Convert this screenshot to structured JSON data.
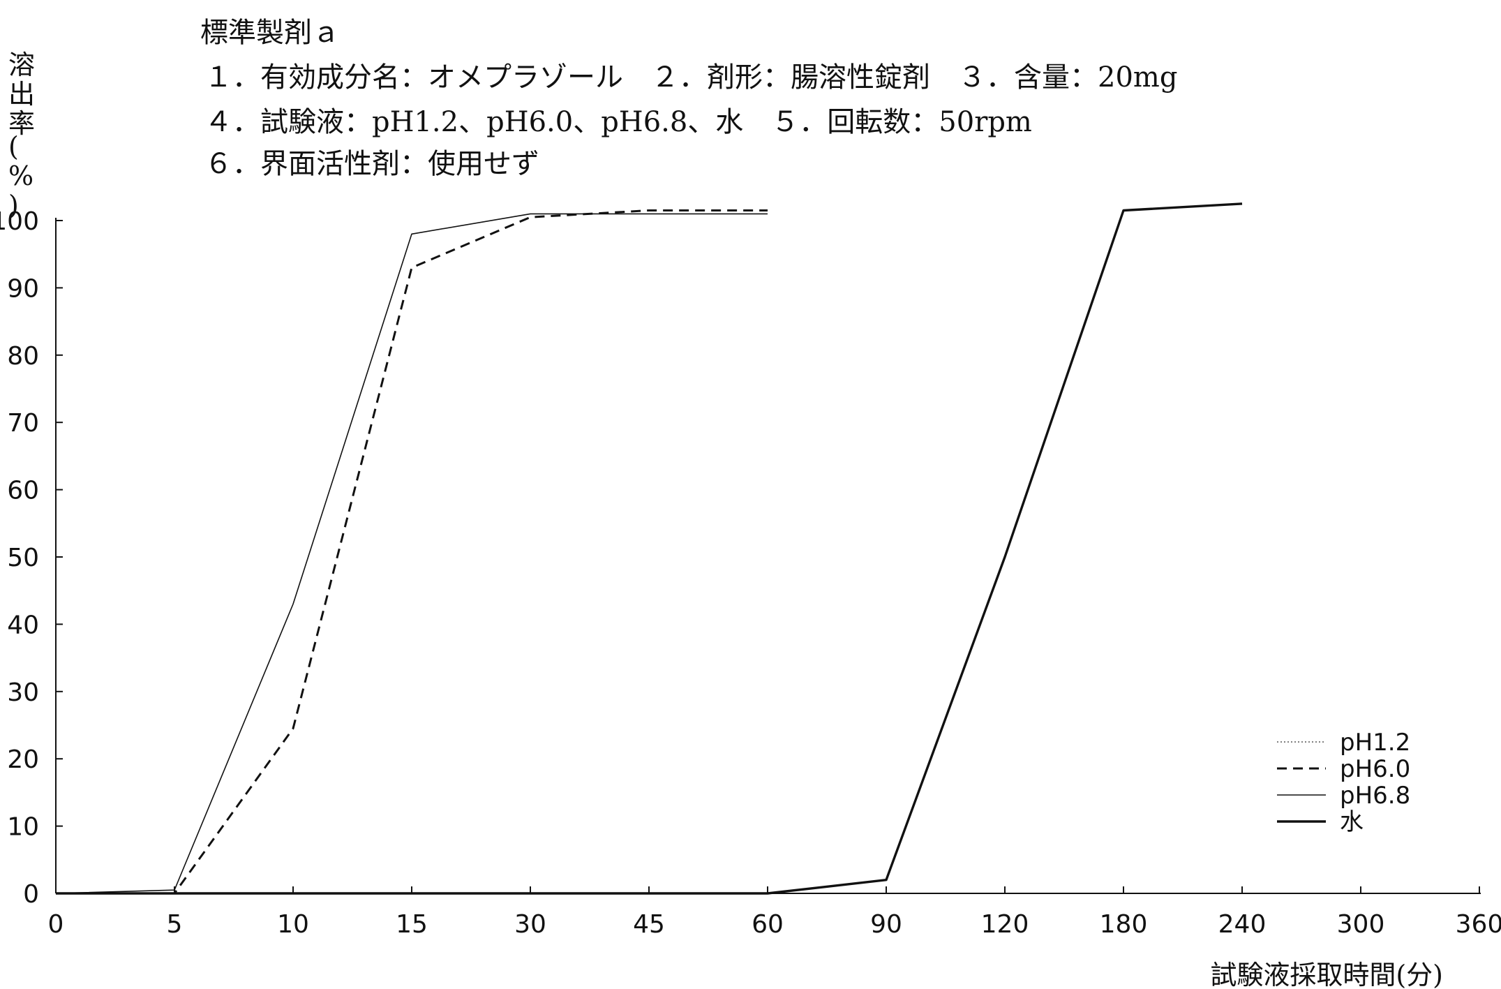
{
  "header": {
    "title": "標準製剤ａ",
    "line1": "１．有効成分名：オメプラゾール　２．剤形：腸溶性錠剤　３．含量：20mg",
    "line2": "４．試験液：pH1.2、pH6.0、pH6.8、水　５．回転数：50rpm",
    "line3": "６．界面活性剤：使用せず"
  },
  "chart_data": {
    "type": "line",
    "xlabel": "試験液採取時間(分)",
    "ylabel": "溶出率(%)",
    "categories": [
      "0",
      "5",
      "10",
      "15",
      "30",
      "45",
      "60",
      "90",
      "120",
      "180",
      "240",
      "300",
      "360"
    ],
    "ylim": [
      0,
      100
    ],
    "yticks": [
      "0",
      "10",
      "20",
      "30",
      "40",
      "50",
      "60",
      "70",
      "80",
      "90",
      "100"
    ],
    "grid": false,
    "legend_position": "bottom-right",
    "series": [
      {
        "name": "pH1.2",
        "style": "dotted",
        "x": [
          "0",
          "5",
          "10",
          "15",
          "30",
          "45",
          "60"
        ],
        "values": [
          0,
          0,
          0,
          0,
          0,
          0,
          0
        ]
      },
      {
        "name": "pH6.0",
        "style": "dashed",
        "x": [
          "0",
          "5",
          "10",
          "15",
          "30",
          "45",
          "60"
        ],
        "values": [
          0,
          0,
          24.5,
          93,
          100.5,
          101.5,
          101.5
        ]
      },
      {
        "name": "pH6.8",
        "style": "solid-thin",
        "x": [
          "0",
          "5",
          "10",
          "15",
          "30",
          "45",
          "60"
        ],
        "values": [
          0,
          0.5,
          43,
          98,
          101,
          101,
          101
        ]
      },
      {
        "name": "水",
        "style": "solid-thick",
        "x": [
          "0",
          "5",
          "10",
          "15",
          "30",
          "45",
          "60",
          "90",
          "120",
          "180",
          "240"
        ],
        "values": [
          0,
          0,
          0,
          0,
          0,
          0,
          0,
          2,
          50,
          101.5,
          102.5
        ]
      }
    ]
  }
}
